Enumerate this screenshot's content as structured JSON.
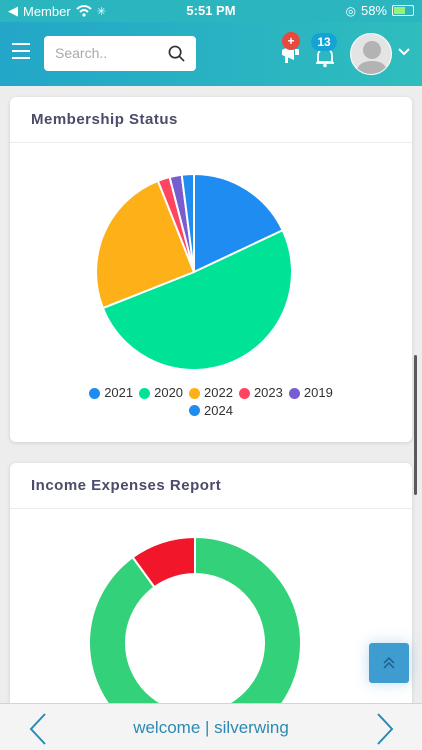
{
  "status_bar": {
    "carrier": "Member",
    "time": "5:51 PM",
    "battery": "58%"
  },
  "header": {
    "search_placeholder": "Search..",
    "notification_badge": "+",
    "bell_badge": "13"
  },
  "membership": {
    "title": "Membership Status",
    "chart_data": {
      "type": "pie",
      "categories": [
        "2021",
        "2020",
        "2022",
        "2023",
        "2019",
        "2024"
      ],
      "values": [
        18,
        51,
        25,
        2,
        2,
        2
      ],
      "colors": [
        "#1e8cf0",
        "#00e396",
        "#feb019",
        "#ff4560",
        "#775dd0",
        "#1e8cf0"
      ],
      "legend_position": "bottom"
    },
    "legend": [
      "2021",
      "2020",
      "2022",
      "2023",
      "2019",
      "2024"
    ]
  },
  "income": {
    "title": "Income Expenses Report",
    "chart_data": {
      "type": "pie",
      "style": "donut",
      "values": [
        90,
        10
      ],
      "colors": [
        "#33d17a",
        "#f2162a"
      ]
    }
  },
  "footer": {
    "title": "welcome | silverwing"
  }
}
